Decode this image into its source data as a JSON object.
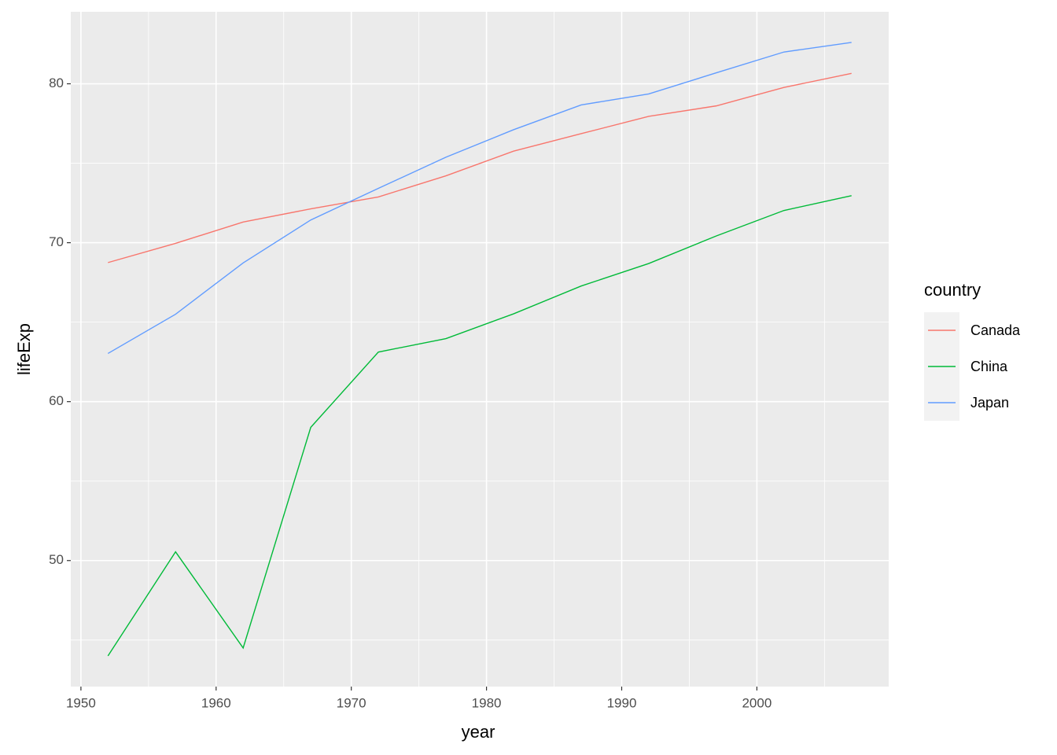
{
  "chart_data": {
    "type": "line",
    "x_label": "year",
    "y_label": "lifeExp",
    "legend_title": "country",
    "x": [
      1952,
      1957,
      1962,
      1967,
      1972,
      1977,
      1982,
      1987,
      1992,
      1997,
      2002,
      2007
    ],
    "series": [
      {
        "name": "Canada",
        "color": "#F8766D",
        "values": [
          68.75,
          69.96,
          71.3,
          72.13,
          72.88,
          74.21,
          75.76,
          76.86,
          77.95,
          78.61,
          79.77,
          80.653
        ]
      },
      {
        "name": "China",
        "color": "#00BA38",
        "values": [
          44.0,
          50.549,
          44.501,
          58.381,
          63.119,
          63.967,
          65.525,
          67.274,
          68.69,
          70.426,
          72.028,
          72.961
        ]
      },
      {
        "name": "Japan",
        "color": "#619CFF",
        "values": [
          63.03,
          65.5,
          68.73,
          71.43,
          73.42,
          75.38,
          77.11,
          78.67,
          79.36,
          80.69,
          82.0,
          82.603
        ]
      }
    ],
    "xlim": [
      1949.25,
      2009.75
    ],
    "ylim": [
      42.07,
      84.53
    ],
    "xticks": [
      1950,
      1960,
      1970,
      1980,
      1990,
      2000
    ],
    "yticks": [
      50,
      60,
      70,
      80
    ],
    "x_minor_ticks": [
      1955,
      1965,
      1975,
      1985,
      1995,
      2005
    ],
    "y_minor_ticks": [
      45,
      55,
      65,
      75
    ],
    "grid": true,
    "legend": "right"
  }
}
